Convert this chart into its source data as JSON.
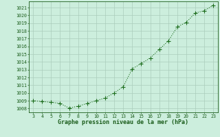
{
  "x": [
    3,
    4,
    5,
    6,
    7,
    8,
    9,
    10,
    11,
    12,
    13,
    14,
    15,
    16,
    17,
    18,
    19,
    20,
    21,
    22,
    23
  ],
  "y": [
    1009.0,
    1008.9,
    1008.8,
    1008.65,
    1008.05,
    1008.3,
    1008.65,
    1009.0,
    1009.35,
    1010.0,
    1010.8,
    1013.1,
    1013.8,
    1014.5,
    1015.6,
    1016.7,
    1018.5,
    1019.1,
    1020.3,
    1020.6,
    1021.3
  ],
  "line_color": "#1a6b1a",
  "marker": "+",
  "marker_size": 4.0,
  "linewidth": 0.8,
  "bg_color": "#cceedd",
  "grid_color": "#aaccbb",
  "xlabel": "Graphe pression niveau de la mer (hPa)",
  "xlabel_color": "#1a5c1a",
  "xlabel_fontsize": 6.0,
  "ylabel_ticks": [
    1008,
    1009,
    1010,
    1011,
    1012,
    1013,
    1014,
    1015,
    1016,
    1017,
    1018,
    1019,
    1020,
    1021
  ],
  "ylim": [
    1007.5,
    1021.8
  ],
  "xlim": [
    2.5,
    23.5
  ],
  "xticks": [
    3,
    4,
    5,
    6,
    7,
    8,
    9,
    10,
    11,
    12,
    13,
    14,
    15,
    16,
    17,
    18,
    19,
    20,
    21,
    22,
    23
  ],
  "tick_color": "#1a5c1a",
  "tick_fontsize": 4.8,
  "spine_color": "#1a5c1a"
}
